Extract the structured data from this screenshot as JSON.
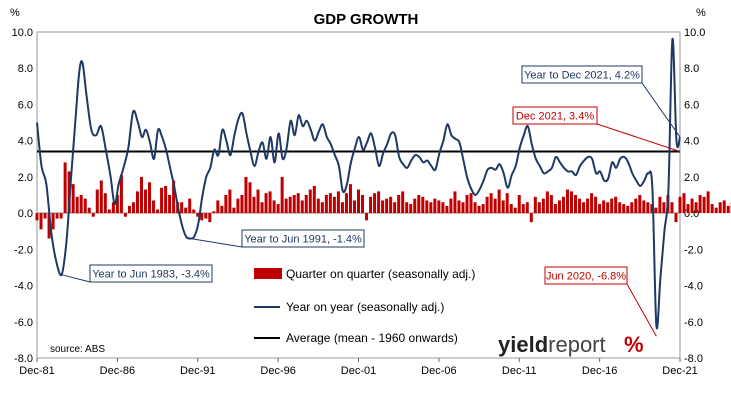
{
  "chart_data": {
    "type": "bar",
    "title": "GDP GROWTH",
    "y_unit_left": "%",
    "y_unit_right": "%",
    "ylim": [
      -8,
      10
    ],
    "yticks": [
      "-8.0",
      "-6.0",
      "-4.0",
      "-2.0",
      "0.0",
      "2.0",
      "4.0",
      "6.0",
      "8.0",
      "10.0"
    ],
    "x_range": [
      1981.92,
      2021.92
    ],
    "x_ticks": [
      {
        "label": "Dec-81",
        "x": 1981.92
      },
      {
        "label": "Dec-86",
        "x": 1986.92
      },
      {
        "label": "Dec-91",
        "x": 1991.92
      },
      {
        "label": "Dec-96",
        "x": 1996.92
      },
      {
        "label": "Dec-01",
        "x": 2001.92
      },
      {
        "label": "Dec-06",
        "x": 2006.92
      },
      {
        "label": "Dec-11",
        "x": 2011.92
      },
      {
        "label": "Dec-16",
        "x": 2016.92
      },
      {
        "label": "Dec-21",
        "x": 2021.92
      }
    ],
    "series": [
      {
        "name": "Quarter on quarter (seasonally adj.)",
        "kind": "bar",
        "color": "#c00000",
        "start": 1981.92,
        "step": 0.25,
        "values": [
          -0.4,
          -0.9,
          -0.3,
          -1.4,
          -0.9,
          -0.3,
          -0.3,
          2.8,
          2.3,
          1.6,
          0.9,
          1.0,
          0.8,
          0.3,
          -0.2,
          1.3,
          1.8,
          1.1,
          0.2,
          0.6,
          1.0,
          2.1,
          -0.2,
          0.4,
          0.6,
          1.2,
          2.0,
          1.3,
          1.7,
          0.7,
          0.2,
          1.4,
          1.5,
          1.0,
          1.8,
          0.6,
          0.6,
          0.3,
          0.8,
          0.2,
          -0.2,
          -0.4,
          -0.3,
          -0.5,
          0.1,
          0.7,
          0.4,
          1.0,
          1.3,
          0.3,
          0.8,
          1.0,
          2.0,
          1.7,
          0.9,
          1.3,
          0.6,
          1.1,
          1.2,
          0.7,
          0.5,
          2.0,
          0.8,
          0.9,
          1.0,
          1.1,
          0.7,
          1.0,
          1.3,
          1.5,
          0.8,
          0.6,
          1.0,
          1.1,
          0.9,
          1.2,
          0.6,
          1.1,
          1.6,
          0.7,
          1.3,
          1.0,
          -0.4,
          0.9,
          1.1,
          1.2,
          0.7,
          0.8,
          0.9,
          0.6,
          1.0,
          1.2,
          0.6,
          0.5,
          0.8,
          1.0,
          0.9,
          0.7,
          0.6,
          0.8,
          0.7,
          0.6,
          0.4,
          0.8,
          1.2,
          0.7,
          0.6,
          1.0,
          1.1,
          0.6,
          0.4,
          0.5,
          0.9,
          1.1,
          0.8,
          1.3,
          0.7,
          1.1,
          0.5,
          0.3,
          1.0,
          0.5,
          0.6,
          -0.5,
          0.9,
          0.6,
          0.8,
          1.2,
          1.0,
          0.5,
          0.7,
          0.9,
          1.3,
          1.2,
          1.0,
          0.8,
          0.6,
          0.8,
          1.1,
          0.9,
          0.5,
          0.7,
          0.6,
          0.8,
          0.9,
          0.6,
          0.5,
          0.4,
          0.6,
          0.8,
          1.0,
          0.7,
          0.6,
          0.5,
          0.3,
          0.9,
          0.6,
          1.0,
          0.6,
          -0.5,
          0.9,
          1.1,
          0.5,
          0.8,
          0.6,
          1.0,
          0.9,
          1.2,
          0.5,
          0.3,
          0.6,
          0.7,
          0.4,
          0.6,
          0.9,
          0.5,
          -0.3,
          -6.8,
          3.3,
          3.4,
          1.8,
          0.7,
          -1.9,
          3.4
        ]
      },
      {
        "name": "Year on year (seasonally adj.)",
        "kind": "line",
        "color": "#1f3864",
        "points": [
          [
            1981.92,
            5.0
          ],
          [
            1982.2,
            2.6
          ],
          [
            1982.5,
            1.6
          ],
          [
            1982.8,
            -1.0
          ],
          [
            1983.1,
            -2.6
          ],
          [
            1983.45,
            -3.4
          ],
          [
            1983.75,
            -1.6
          ],
          [
            1984.0,
            1.5
          ],
          [
            1984.3,
            5.0
          ],
          [
            1984.55,
            7.8
          ],
          [
            1984.75,
            8.3
          ],
          [
            1985.0,
            6.5
          ],
          [
            1985.3,
            4.6
          ],
          [
            1985.6,
            4.3
          ],
          [
            1985.9,
            4.8
          ],
          [
            1986.2,
            3.5
          ],
          [
            1986.5,
            2.0
          ],
          [
            1986.75,
            0.5
          ],
          [
            1987.0,
            1.6
          ],
          [
            1987.3,
            2.5
          ],
          [
            1987.6,
            3.6
          ],
          [
            1987.9,
            5.6
          ],
          [
            1988.2,
            5.0
          ],
          [
            1988.45,
            4.2
          ],
          [
            1988.7,
            4.6
          ],
          [
            1988.95,
            3.9
          ],
          [
            1989.2,
            3.0
          ],
          [
            1989.45,
            4.6
          ],
          [
            1989.7,
            4.2
          ],
          [
            1989.95,
            3.5
          ],
          [
            1990.2,
            2.5
          ],
          [
            1990.45,
            1.5
          ],
          [
            1990.7,
            0.3
          ],
          [
            1990.95,
            -0.7
          ],
          [
            1991.2,
            -1.3
          ],
          [
            1991.45,
            -1.4
          ],
          [
            1991.7,
            -1.3
          ],
          [
            1991.95,
            -0.6
          ],
          [
            1992.2,
            0.9
          ],
          [
            1992.45,
            2.0
          ],
          [
            1992.7,
            2.5
          ],
          [
            1992.95,
            3.5
          ],
          [
            1993.2,
            3.2
          ],
          [
            1993.45,
            4.6
          ],
          [
            1993.7,
            4.0
          ],
          [
            1993.95,
            3.2
          ],
          [
            1994.2,
            4.3
          ],
          [
            1994.45,
            5.2
          ],
          [
            1994.7,
            5.5
          ],
          [
            1994.95,
            4.4
          ],
          [
            1995.2,
            3.4
          ],
          [
            1995.45,
            2.6
          ],
          [
            1995.7,
            3.4
          ],
          [
            1995.95,
            3.9
          ],
          [
            1996.2,
            3.0
          ],
          [
            1996.45,
            4.2
          ],
          [
            1996.7,
            2.8
          ],
          [
            1996.95,
            4.4
          ],
          [
            1997.2,
            3.0
          ],
          [
            1997.45,
            3.6
          ],
          [
            1997.7,
            5.1
          ],
          [
            1997.95,
            4.3
          ],
          [
            1998.2,
            5.4
          ],
          [
            1998.45,
            4.8
          ],
          [
            1998.7,
            5.1
          ],
          [
            1998.95,
            4.6
          ],
          [
            1999.2,
            4.0
          ],
          [
            1999.45,
            4.5
          ],
          [
            1999.7,
            4.9
          ],
          [
            1999.95,
            4.2
          ],
          [
            2000.2,
            3.8
          ],
          [
            2000.45,
            3.2
          ],
          [
            2000.7,
            2.6
          ],
          [
            2000.95,
            1.2
          ],
          [
            2001.2,
            1.6
          ],
          [
            2001.45,
            2.8
          ],
          [
            2001.7,
            3.6
          ],
          [
            2001.95,
            4.2
          ],
          [
            2002.2,
            3.5
          ],
          [
            2002.45,
            3.9
          ],
          [
            2002.7,
            4.4
          ],
          [
            2002.95,
            3.6
          ],
          [
            2003.2,
            2.6
          ],
          [
            2003.45,
            3.3
          ],
          [
            2003.7,
            3.8
          ],
          [
            2003.95,
            4.4
          ],
          [
            2004.2,
            4.3
          ],
          [
            2004.45,
            3.1
          ],
          [
            2004.7,
            2.7
          ],
          [
            2004.95,
            2.5
          ],
          [
            2005.2,
            2.9
          ],
          [
            2005.45,
            3.2
          ],
          [
            2005.7,
            3.1
          ],
          [
            2005.95,
            2.8
          ],
          [
            2006.2,
            2.9
          ],
          [
            2006.45,
            2.6
          ],
          [
            2006.7,
            2.4
          ],
          [
            2006.95,
            3.3
          ],
          [
            2007.2,
            4.0
          ],
          [
            2007.45,
            4.9
          ],
          [
            2007.7,
            4.3
          ],
          [
            2007.95,
            4.1
          ],
          [
            2008.2,
            3.9
          ],
          [
            2008.45,
            2.9
          ],
          [
            2008.7,
            1.9
          ],
          [
            2008.95,
            1.3
          ],
          [
            2009.2,
            1.0
          ],
          [
            2009.45,
            1.3
          ],
          [
            2009.7,
            1.8
          ],
          [
            2009.95,
            2.4
          ],
          [
            2010.2,
            2.5
          ],
          [
            2010.45,
            2.4
          ],
          [
            2010.7,
            2.7
          ],
          [
            2010.95,
            2.2
          ],
          [
            2011.2,
            1.4
          ],
          [
            2011.45,
            2.1
          ],
          [
            2011.7,
            2.6
          ],
          [
            2011.95,
            3.6
          ],
          [
            2012.2,
            4.3
          ],
          [
            2012.45,
            4.8
          ],
          [
            2012.7,
            3.8
          ],
          [
            2012.95,
            3.0
          ],
          [
            2013.2,
            2.6
          ],
          [
            2013.45,
            2.2
          ],
          [
            2013.7,
            2.3
          ],
          [
            2013.95,
            2.5
          ],
          [
            2014.2,
            3.1
          ],
          [
            2014.45,
            2.8
          ],
          [
            2014.7,
            2.5
          ],
          [
            2014.95,
            2.3
          ],
          [
            2015.2,
            2.3
          ],
          [
            2015.45,
            2.1
          ],
          [
            2015.7,
            2.6
          ],
          [
            2015.95,
            2.9
          ],
          [
            2016.2,
            3.1
          ],
          [
            2016.45,
            3.0
          ],
          [
            2016.7,
            2.2
          ],
          [
            2016.95,
            2.3
          ],
          [
            2017.2,
            1.8
          ],
          [
            2017.45,
            1.9
          ],
          [
            2017.7,
            2.8
          ],
          [
            2017.95,
            2.5
          ],
          [
            2018.2,
            3.0
          ],
          [
            2018.45,
            3.1
          ],
          [
            2018.7,
            2.8
          ],
          [
            2018.95,
            2.2
          ],
          [
            2019.2,
            1.8
          ],
          [
            2019.45,
            1.5
          ],
          [
            2019.7,
            1.8
          ],
          [
            2019.95,
            2.2
          ],
          [
            2020.2,
            1.4
          ],
          [
            2020.45,
            -6.2
          ],
          [
            2020.7,
            -3.6
          ],
          [
            2020.95,
            -1.0
          ],
          [
            2021.2,
            1.3
          ],
          [
            2021.45,
            9.6
          ],
          [
            2021.7,
            4.0
          ],
          [
            2021.92,
            4.2
          ]
        ]
      },
      {
        "name": "Average (mean - 1960 onwards)",
        "kind": "hline",
        "color": "#000000",
        "value": 3.4
      }
    ],
    "annotations": [
      {
        "text": "Year to Jun 1983, -3.4%",
        "color": "#1f3864",
        "target": [
          1983.45,
          -3.4
        ]
      },
      {
        "text": "Year to Jun 1991, -1.4%",
        "color": "#1f3864",
        "target": [
          1991.45,
          -1.4
        ]
      },
      {
        "text": "Year to Dec 2021, 4.2%",
        "color": "#1f3864",
        "target": [
          2021.92,
          4.2
        ]
      },
      {
        "text": "Dec 2021, 3.4%",
        "color": "#c00000",
        "target": [
          2021.92,
          3.4
        ]
      },
      {
        "text": "Jun 2020, -6.8%",
        "color": "#c00000",
        "target": [
          2020.45,
          -6.8
        ]
      }
    ],
    "source": "source: ABS",
    "brand": {
      "dark": "yield",
      "light": "report",
      "symbol": "%"
    }
  }
}
